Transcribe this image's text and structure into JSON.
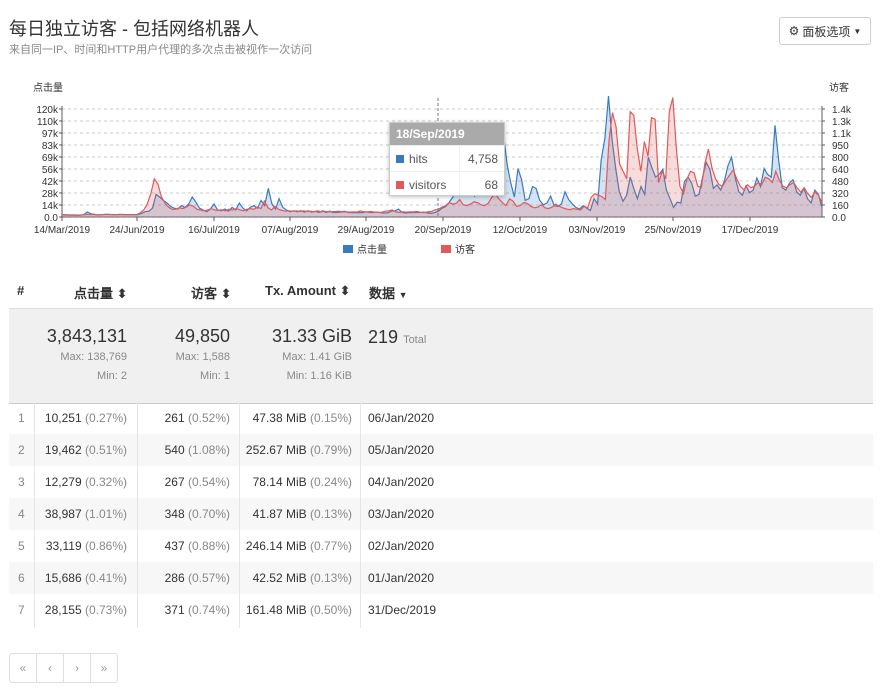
{
  "header": {
    "title": "每日独立访客 - 包括网络机器人",
    "subtitle": "来自同一IP、时间和HTTP用户代理的多次点击被视作一次访问",
    "panel_button": "面板选项",
    "panel_icon": "gear-icon"
  },
  "chart_data": {
    "type": "area",
    "left_axis_label": "点击量",
    "right_axis_label": "访客",
    "left_ticks": [
      "0.0",
      "14k",
      "28k",
      "42k",
      "56k",
      "69k",
      "83k",
      "97k",
      "110k",
      "120k"
    ],
    "right_ticks": [
      "0.0",
      "160",
      "320",
      "480",
      "640",
      "800",
      "950",
      "1.1k",
      "1.3k",
      "1.4k"
    ],
    "left_ylim": [
      0,
      125000
    ],
    "right_ylim": [
      0,
      1450
    ],
    "x_ticks": [
      "14/Mar/2019",
      "24/Jun/2019",
      "16/Jul/2019",
      "07/Aug/2019",
      "29/Aug/2019",
      "20/Sep/2019",
      "12/Oct/2019",
      "03/Nov/2019",
      "25/Nov/2019",
      "17/Dec/2019"
    ],
    "series": [
      {
        "name": "点击量",
        "color": "#3a7bbf",
        "values": [
          1500,
          1200,
          1000,
          900,
          800,
          900,
          1500,
          4800,
          2500,
          1800,
          1200,
          1500,
          1800,
          1900,
          1500,
          1500,
          1800,
          1700,
          1600,
          1600,
          1500,
          1500,
          3000,
          5000,
          5500,
          9000,
          25000,
          22000,
          18000,
          15000,
          11000,
          9000,
          8000,
          12000,
          10000,
          14000,
          22000,
          16000,
          9000,
          7000,
          5000,
          8000,
          14000,
          7000,
          6000,
          8000,
          5500,
          10000,
          7000,
          15000,
          9000,
          6000,
          10000,
          12000,
          9000,
          18000,
          12000,
          32000,
          14000,
          8000,
          20000,
          10000,
          7000,
          5000,
          6000,
          5000,
          6000,
          4500,
          6000,
          4500,
          5500,
          4000,
          6000,
          4000,
          5500,
          4000,
          4200,
          4500,
          5500,
          4000,
          4000,
          3800,
          4000,
          3800,
          4758,
          4200,
          4000,
          4500,
          3800,
          3500,
          3600,
          5500,
          6000,
          8000,
          4000,
          3500,
          4000,
          3800,
          4200,
          4000,
          4500,
          3500,
          3000,
          4000,
          5500,
          9000,
          11000,
          16000,
          22000,
          48000,
          38000,
          42000,
          75000,
          28000,
          23000,
          35000,
          55000,
          48000,
          33000,
          25000,
          40000,
          62000,
          95000,
          60000,
          38000,
          22000,
          55000,
          42000,
          18000,
          20000,
          34000,
          32000,
          18000,
          13000,
          15000,
          23000,
          12000,
          11000,
          14000,
          28000,
          19000,
          14000,
          10000,
          8000,
          12000,
          9000,
          6500,
          20000,
          14000,
          65000,
          90000,
          138769,
          88000,
          55000,
          28000,
          17000,
          24000,
          45000,
          32000,
          20000,
          34000,
          25000,
          68000,
          56000,
          45000,
          48000,
          54000,
          30000,
          20000,
          10000,
          16000,
          15000,
          40000,
          45000,
          38000,
          23000,
          25000,
          45000,
          62000,
          54000,
          32000,
          36000,
          30000,
          40000,
          58000,
          68000,
          45000,
          28000,
          24000,
          35000,
          27000,
          30000,
          44000,
          34000,
          55000,
          48000,
          45000,
          105000,
          65000,
          33000,
          30000,
          38000,
          42000,
          28000,
          24000,
          32000,
          20000,
          15000,
          30000,
          25000,
          10000
        ]
      },
      {
        "name": "访客",
        "color": "#e05a5a",
        "values": [
          20,
          18,
          15,
          15,
          14,
          14,
          16,
          22,
          20,
          18,
          16,
          18,
          20,
          21,
          18,
          18,
          20,
          19,
          18,
          18,
          18,
          18,
          40,
          80,
          160,
          300,
          500,
          430,
          260,
          170,
          120,
          90,
          90,
          110,
          100,
          120,
          150,
          130,
          90,
          80,
          70,
          80,
          100,
          80,
          75,
          85,
          70,
          90,
          80,
          100,
          85,
          70,
          90,
          100,
          90,
          120,
          100,
          200,
          110,
          80,
          130,
          90,
          75,
          65,
          70,
          65,
          70,
          60,
          70,
          60,
          65,
          55,
          70,
          55,
          65,
          55,
          58,
          60,
          65,
          55,
          55,
          52,
          55,
          52,
          68,
          58,
          55,
          60,
          52,
          48,
          50,
          65,
          70,
          80,
          55,
          48,
          55,
          52,
          56,
          55,
          60,
          48,
          45,
          55,
          60,
          80,
          90,
          120,
          140,
          180,
          160,
          170,
          220,
          150,
          140,
          160,
          190,
          180,
          150,
          140,
          170,
          250,
          300,
          230,
          180,
          140,
          230,
          200,
          130,
          140,
          180,
          170,
          130,
          110,
          120,
          150,
          110,
          100,
          120,
          160,
          130,
          110,
          95,
          85,
          100,
          90,
          80,
          130,
          110,
          250,
          300,
          280,
          260,
          220,
          1000,
          1388,
          1200,
          700,
          600,
          500,
          1400,
          1350,
          900,
          600,
          1000,
          800,
          1320,
          1300,
          450,
          600,
          500,
          1400,
          1588,
          900,
          400,
          300,
          500,
          600,
          580,
          400,
          380,
          700,
          900,
          650,
          500,
          420,
          400,
          480,
          550,
          620,
          500,
          400,
          350,
          420,
          380,
          400,
          450,
          420,
          520,
          500,
          450,
          600,
          480,
          400,
          380,
          420,
          450,
          380,
          320,
          380,
          300,
          250,
          320,
          280,
          180
        ]
      }
    ],
    "tooltip": {
      "date": "18/Sep/2019",
      "rows": [
        {
          "label": "hits",
          "value": "4,758"
        },
        {
          "label": "visitors",
          "value": "68"
        }
      ]
    },
    "legend": [
      "点击量",
      "访客"
    ],
    "grid": true
  },
  "table": {
    "headers": [
      "#",
      "点击量",
      "访客",
      "Tx. Amount",
      "数据"
    ],
    "summary": {
      "hits": "3,843,131",
      "hits_max": "Max: 138,769",
      "hits_min": "Min: 2",
      "visitors": "49,850",
      "visitors_max": "Max: 1,588",
      "visitors_min": "Min: 1",
      "tx": "31.33 GiB",
      "tx_max": "Max: 1.41 GiB",
      "tx_min": "Min: 1.16 KiB",
      "data_count": "219",
      "data_label": "Total"
    },
    "rows": [
      {
        "n": "1",
        "hits": "10,251",
        "hits_pct": "(0.27%)",
        "vis": "261",
        "vis_pct": "(0.52%)",
        "tx": "47.38 MiB",
        "tx_pct": "(0.15%)",
        "date": "06/Jan/2020"
      },
      {
        "n": "2",
        "hits": "19,462",
        "hits_pct": "(0.51%)",
        "vis": "540",
        "vis_pct": "(1.08%)",
        "tx": "252.67 MiB",
        "tx_pct": "(0.79%)",
        "date": "05/Jan/2020"
      },
      {
        "n": "3",
        "hits": "12,279",
        "hits_pct": "(0.32%)",
        "vis": "267",
        "vis_pct": "(0.54%)",
        "tx": "78.14 MiB",
        "tx_pct": "(0.24%)",
        "date": "04/Jan/2020"
      },
      {
        "n": "4",
        "hits": "38,987",
        "hits_pct": "(1.01%)",
        "vis": "348",
        "vis_pct": "(0.70%)",
        "tx": "41.87 MiB",
        "tx_pct": "(0.13%)",
        "date": "03/Jan/2020"
      },
      {
        "n": "5",
        "hits": "33,119",
        "hits_pct": "(0.86%)",
        "vis": "437",
        "vis_pct": "(0.88%)",
        "tx": "246.14 MiB",
        "tx_pct": "(0.77%)",
        "date": "02/Jan/2020"
      },
      {
        "n": "6",
        "hits": "15,686",
        "hits_pct": "(0.41%)",
        "vis": "286",
        "vis_pct": "(0.57%)",
        "tx": "42.52 MiB",
        "tx_pct": "(0.13%)",
        "date": "01/Jan/2020"
      },
      {
        "n": "7",
        "hits": "28,155",
        "hits_pct": "(0.73%)",
        "vis": "371",
        "vis_pct": "(0.74%)",
        "tx": "161.48 MiB",
        "tx_pct": "(0.50%)",
        "date": "31/Dec/2019"
      }
    ]
  },
  "pager": [
    "«",
    "‹",
    "›",
    "»"
  ]
}
